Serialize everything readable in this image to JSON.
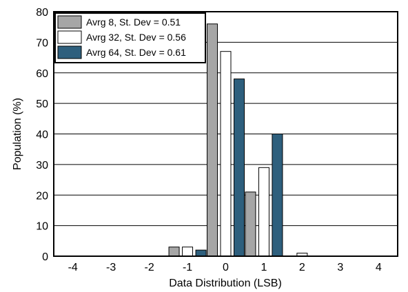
{
  "chart_data": {
    "type": "bar",
    "title": "",
    "xlabel": "Data Distribution (LSB)",
    "ylabel": "Population (%)",
    "categories": [
      "-4",
      "-3",
      "-2",
      "-1",
      "0",
      "1",
      "2",
      "3",
      "4"
    ],
    "ylim": [
      0,
      80
    ],
    "yticks": [
      "0",
      "10",
      "20",
      "30",
      "40",
      "50",
      "60",
      "70",
      "80"
    ],
    "grid": "horizontal",
    "legend_position": "top-left",
    "series": [
      {
        "name": "Avrg 8, St. Dev = 0.51",
        "color": "#a6a6a6",
        "values": [
          0,
          0,
          0,
          3,
          76,
          21,
          0,
          0,
          0
        ]
      },
      {
        "name": "Avrg 32, St. Dev = 0.56",
        "color": "#ffffff",
        "values": [
          0,
          0,
          0,
          3,
          67,
          29,
          1,
          0,
          0
        ]
      },
      {
        "name": "Avrg 64, St. Dev = 0.61",
        "color": "#2e5f7d",
        "values": [
          0,
          0,
          0,
          2,
          58,
          40,
          0,
          0,
          0
        ]
      }
    ]
  }
}
